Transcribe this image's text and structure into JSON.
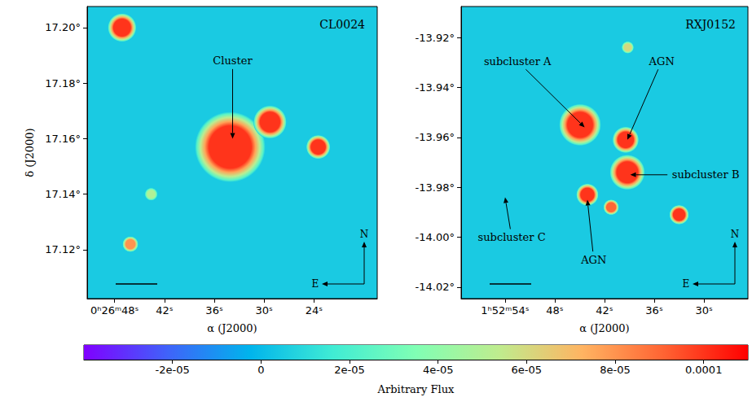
{
  "colorbar": {
    "label": "Arbitrary Flux",
    "range": [
      -4e-05,
      0.00011
    ],
    "ticks": [
      {
        "value": -2e-05,
        "label": "-2e-05"
      },
      0,
      {
        "value": 2e-05,
        "label": "2e-05"
      },
      {
        "value": 4e-05,
        "label": "4e-05"
      },
      {
        "value": 6e-05,
        "label": "6e-05"
      },
      {
        "value": 8e-05,
        "label": "8e-05"
      },
      0.0001
    ]
  },
  "chart_data": [
    {
      "type": "scatter",
      "title": "CL0024",
      "xlabel": "α (J2000)",
      "ylabel": "δ (J2000)",
      "xlim": [
        51.3,
        16.4
      ],
      "xticks": [
        {
          "value": 48,
          "label": "0ʰ26ᵐ48ˢ"
        },
        {
          "value": 42,
          "label": "42ˢ"
        },
        {
          "value": 36,
          "label": "36ˢ"
        },
        {
          "value": 30,
          "label": "30ˢ"
        },
        {
          "value": 24,
          "label": "24ˢ"
        }
      ],
      "ylim": [
        17.1024,
        17.2076
      ],
      "yticks": [
        {
          "value": 17.12,
          "label": "17.12°"
        },
        {
          "value": 17.14,
          "label": "17.14°"
        },
        {
          "value": 17.16,
          "label": "17.16°"
        },
        {
          "value": 17.18,
          "label": "17.18°"
        },
        {
          "value": 17.2,
          "label": "17.20°"
        }
      ],
      "background": 5e-06,
      "sources": {
        "x": [
          47.1,
          34.1,
          29.3,
          23.5,
          46.1,
          43.6
        ],
        "y": [
          17.2,
          17.157,
          17.166,
          17.157,
          17.122,
          17.14
        ],
        "radius": [
          0.0038,
          0.0094,
          0.0044,
          0.0032,
          0.0021,
          0.0017
        ],
        "flux": [
          0.0001,
          0.0001,
          0.0001,
          0.0001,
          8e-05,
          5e-05
        ]
      },
      "annotations": [
        {
          "text": "Cluster",
          "x": 33.8,
          "y": 17.188,
          "target": [
            33.8,
            17.16
          ]
        }
      ],
      "compass": {
        "north": "N",
        "east": "E"
      }
    },
    {
      "type": "scatter",
      "title": "RXJ0152",
      "xlabel": "α (J2000)",
      "xlim": [
        59.3,
        24.7
      ],
      "xticks": [
        {
          "value": 54,
          "label": "1ʰ52ᵐ54ˢ"
        },
        {
          "value": 48,
          "label": "48ˢ"
        },
        {
          "value": 42,
          "label": "42ˢ"
        },
        {
          "value": 36,
          "label": "36ˢ"
        },
        {
          "value": 30,
          "label": "30ˢ"
        }
      ],
      "ylim": [
        -14.0246,
        -13.9076
      ],
      "yticks": [
        {
          "value": -14.02,
          "label": "-14.02°"
        },
        {
          "value": -14.0,
          "label": "-14.00°"
        },
        {
          "value": -13.98,
          "label": "-13.98°"
        },
        {
          "value": -13.96,
          "label": "-13.96°"
        },
        {
          "value": -13.94,
          "label": "-13.94°"
        },
        {
          "value": -13.92,
          "label": "-13.92°"
        }
      ],
      "background": 5e-06,
      "sources": {
        "x": [
          44.95,
          39.45,
          39.25,
          44.07,
          41.2,
          33.0,
          39.2
        ],
        "y": [
          -13.955,
          -13.961,
          -13.974,
          -13.983,
          -13.988,
          -13.991,
          -13.924
        ],
        "radius": [
          0.0062,
          0.0039,
          0.0052,
          0.0033,
          0.0023,
          0.0029,
          0.0018
        ],
        "flux": [
          0.0001,
          0.0001,
          0.0001,
          0.0001,
          9e-05,
          0.0001,
          6e-05
        ]
      },
      "annotations": [
        {
          "text": "subcluster A",
          "x": 52.5,
          "y": -13.9295,
          "target": [
            44.4,
            -13.956
          ]
        },
        {
          "text": "AGN",
          "x": 35.1,
          "y": -13.9295,
          "target": [
            39.25,
            -13.961
          ]
        },
        {
          "text": "subcluster B",
          "x": 29.8,
          "y": -13.975,
          "target": [
            38.9,
            -13.975
          ]
        },
        {
          "text": "AGN",
          "x": 43.3,
          "y": -14.009,
          "target": [
            44.07,
            -13.985
          ]
        },
        {
          "text": "subcluster C",
          "x": 53.2,
          "y": -14.0,
          "target": [
            54.0,
            -13.984
          ]
        }
      ],
      "compass": {
        "north": "N",
        "east": "E"
      }
    }
  ]
}
